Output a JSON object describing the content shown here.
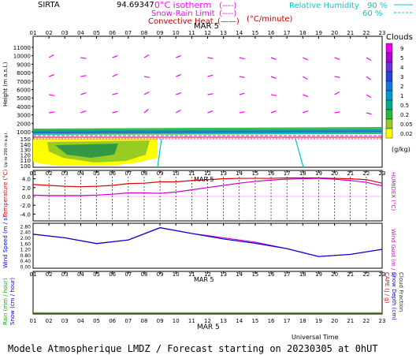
{
  "header": {
    "station": "SIRTA",
    "coord": "94.69347",
    "legend_left": [
      {
        "label": "0°C isotherm",
        "dash": "(----)",
        "color": "#ff00ff"
      },
      {
        "label": "Snow-Rain Limit",
        "dash": "(----)",
        "color": "#ff00ff"
      },
      {
        "label": "Convective Heat",
        "dash": "(——)",
        "color": "#cc0000"
      }
    ],
    "rate_unit": "(°C/minute)",
    "humidity": {
      "label": "Relative Humidity",
      "v1": "90 %",
      "v2": "60 %",
      "color": "#00cccc"
    }
  },
  "date_label": "MAR  5",
  "hours": [
    "01",
    "02",
    "03",
    "04",
    "05",
    "06",
    "07",
    "08",
    "09",
    "10",
    "11",
    "12",
    "13",
    "14",
    "15",
    "16",
    "17",
    "18",
    "19",
    "20",
    "21",
    "22",
    "23"
  ],
  "clouds": {
    "title": "Clouds",
    "levels": [
      "9",
      "5",
      "4",
      "3",
      "2",
      "1",
      "0.5",
      "0.2",
      "0.05",
      "0.02"
    ],
    "unit": "(g/kg)",
    "colors": [
      "#ee00ee",
      "#aa00dd",
      "#6633dd",
      "#2244dd",
      "#1177dd",
      "#0099cc",
      "#00aa88",
      "#22bb33",
      "#99cc22",
      "#ffff00"
    ]
  },
  "footer": "Modele Atmospherique LMDZ / Forecast starting on 20230305 at 0hUT",
  "universal_time": "Universal Time",
  "chart_data": [
    {
      "type": "line",
      "panel": "height",
      "ylabel": "Height (m a.s.l.)",
      "ylabel_low": "Up to 200 m a.g.l.",
      "y_ticks_upper": [
        "11000",
        "10000",
        "9000",
        "8000",
        "7000",
        "6000",
        "5000",
        "4000",
        "3000",
        "2000",
        "1000"
      ],
      "y_ticks_lower": [
        "150",
        "140",
        "130",
        "120",
        "110",
        "100"
      ]
    },
    {
      "type": "line",
      "panel": "temperature",
      "ylabel": "Temperature (°C)",
      "ylabel_right": "HUMIDEX (°C)",
      "y_ticks": [
        "4.0",
        "2.0",
        "0.0",
        "-2.0",
        "-4.0"
      ],
      "ylim": [
        -5,
        5
      ],
      "x": [
        "01",
        "02",
        "03",
        "04",
        "05",
        "06",
        "07",
        "08",
        "09",
        "10",
        "11",
        "12",
        "13",
        "14",
        "15",
        "16",
        "17",
        "18",
        "19",
        "20",
        "21",
        "22",
        "23"
      ],
      "series": [
        {
          "values": [
            2.7,
            2.5,
            2.3,
            2.2,
            2.3,
            2.5,
            2.9,
            3.0,
            3.3,
            3.3,
            3.6,
            3.8,
            4.0,
            4.1,
            4.1,
            4.1,
            4.2,
            4.2,
            4.2,
            4.1,
            4.0,
            3.8,
            3.0
          ],
          "color": "#dd0000"
        },
        {
          "values": [
            0.3,
            0.2,
            0.2,
            0.2,
            0.3,
            0.5,
            0.8,
            0.8,
            0.7,
            1.0,
            1.5,
            2.0,
            2.5,
            3.0,
            3.4,
            3.7,
            3.9,
            4.0,
            4.1,
            3.9,
            3.6,
            3.2,
            2.4
          ],
          "color": "#cc00cc"
        }
      ]
    },
    {
      "type": "line",
      "panel": "wind",
      "ylabel": "Wind Speed (m / s)",
      "ylabel_right": "Wind Gust (m / s)",
      "y_ticks": [
        "2.80",
        "2.40",
        "2.00",
        "1.60",
        "1.20",
        "0.80",
        "0.40",
        "0.00"
      ],
      "ylim": [
        0,
        2.9
      ],
      "x": [
        "01",
        "03",
        "05",
        "07",
        "09",
        "11",
        "13",
        "15",
        "17",
        "19",
        "21",
        "23"
      ],
      "series": [
        {
          "values": [
            2.25,
            2.0,
            1.6,
            1.85,
            2.7,
            2.3,
            1.92,
            1.62,
            1.25,
            0.7,
            0.85,
            1.2
          ],
          "color": "#0000cc"
        },
        {
          "values": [
            2.25,
            2.0,
            1.6,
            1.85,
            2.7,
            2.3,
            2.0,
            1.7,
            1.25,
            0.7,
            0.85,
            1.2
          ],
          "color": "#cc00cc"
        }
      ]
    },
    {
      "type": "line",
      "panel": "rain",
      "ylabel": "Rain (mm / hour)",
      "ylabel2": "Snow (cm / hour)",
      "ylabel_right": "CAPE (J / g)",
      "ylabel_right2": "Snow Depth (cm)",
      "ylabel_right3": "Cloud Fraction"
    }
  ]
}
